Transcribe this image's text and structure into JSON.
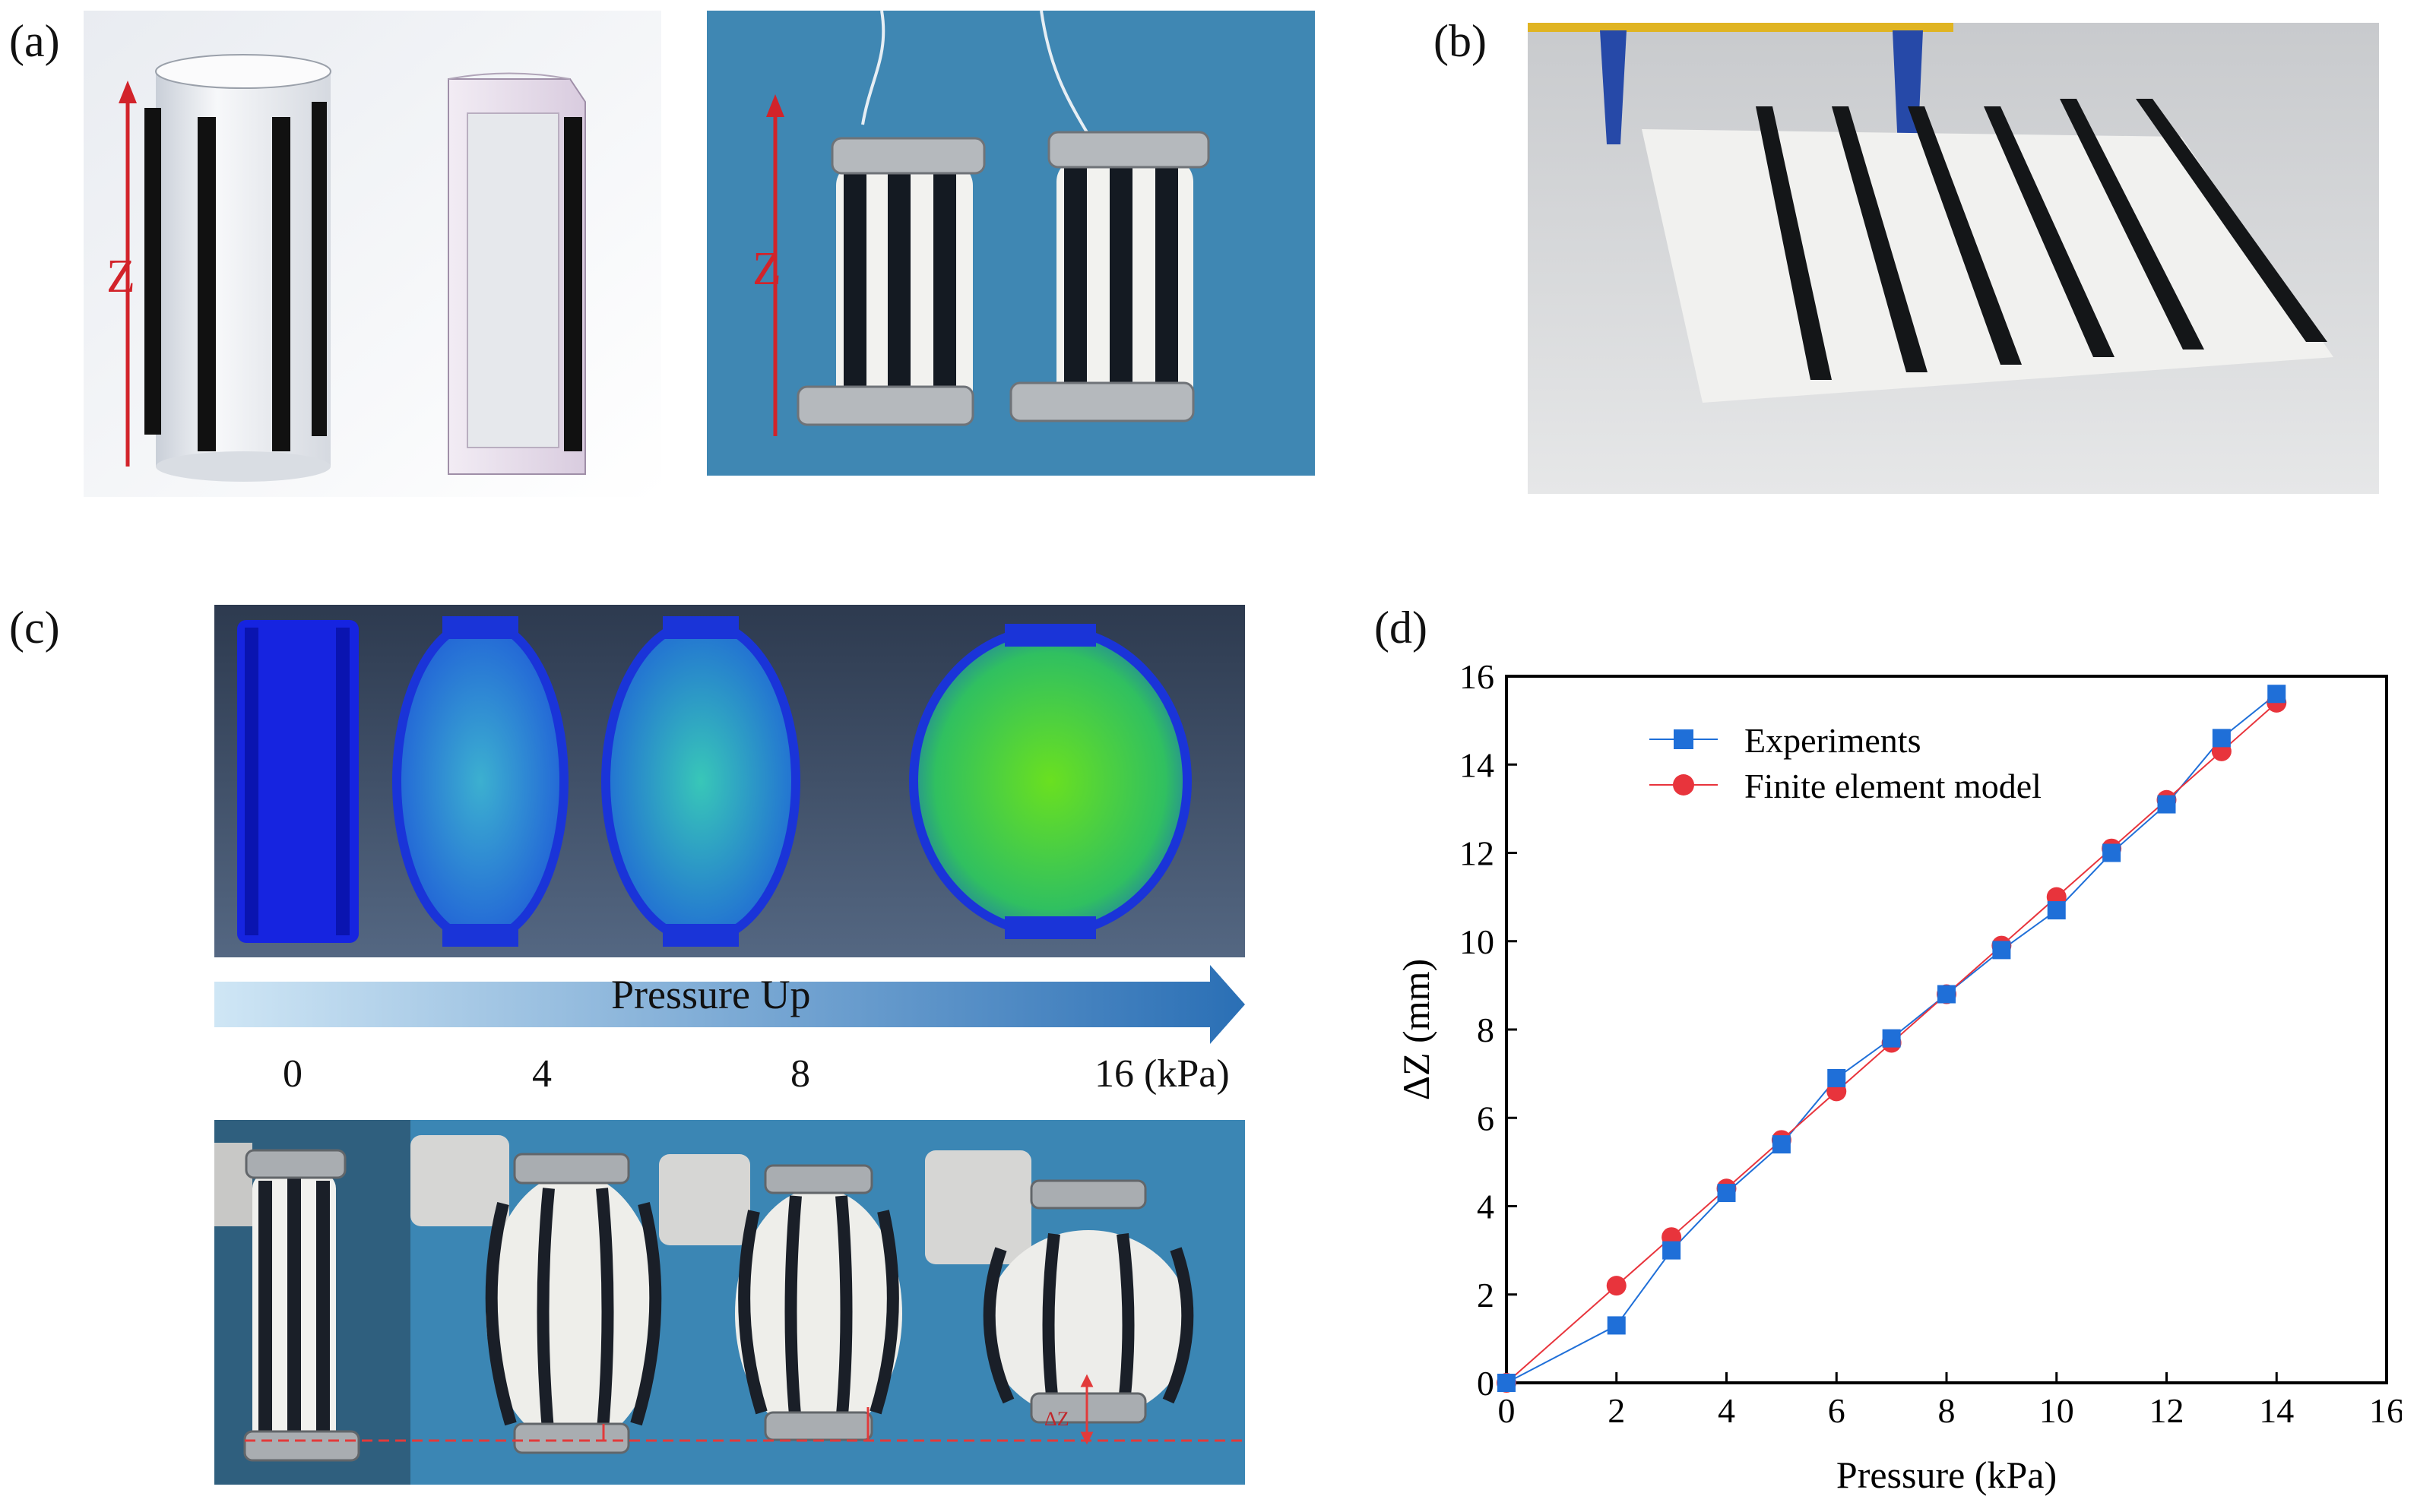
{
  "panels": {
    "a": {
      "label": "(a)",
      "cad_axis_label": "Z",
      "photo_axis_label": "Z"
    },
    "b": {
      "label": "(b)"
    },
    "c": {
      "label": "(c)",
      "arrow_text": "Pressure Up",
      "pressure_labels": [
        "0",
        "4",
        "8",
        "16 (kPa)"
      ],
      "dz_label": "ΔZ"
    },
    "d": {
      "label": "(d)"
    }
  },
  "colors": {
    "experiments": "#1f6fd8",
    "fem": "#e8343c",
    "photo_bg": "#3b86b4",
    "fem_bg": "#3a4f68"
  },
  "chart_data": {
    "type": "line",
    "xlabel": "Pressure (kPa)",
    "ylabel": "ΔZ (mm)",
    "xlim": [
      0,
      16
    ],
    "ylim": [
      0,
      16
    ],
    "xticks": [
      "0",
      "2",
      "4",
      "6",
      "8",
      "10",
      "12",
      "14",
      "16"
    ],
    "yticks": [
      "0",
      "2",
      "4",
      "6",
      "8",
      "10",
      "12",
      "14",
      "16"
    ],
    "legend_position": "top-left",
    "grid": false,
    "series": [
      {
        "name": "Experiments",
        "marker": "square",
        "color": "#1f6fd8",
        "x": [
          0,
          2,
          3,
          4,
          5,
          6,
          7,
          8,
          9,
          10,
          11,
          12,
          13,
          14
        ],
        "y": [
          0,
          1.3,
          3.0,
          4.3,
          5.4,
          6.9,
          7.8,
          8.8,
          9.8,
          10.7,
          12.0,
          13.1,
          14.6,
          15.6
        ]
      },
      {
        "name": "Finite element model",
        "marker": "circle",
        "color": "#e8343c",
        "x": [
          0,
          2,
          3,
          4,
          5,
          6,
          7,
          8,
          9,
          10,
          11,
          12,
          13,
          14
        ],
        "y": [
          0,
          2.2,
          3.3,
          4.4,
          5.5,
          6.6,
          7.7,
          8.8,
          9.9,
          11.0,
          12.1,
          13.2,
          14.3,
          15.4
        ]
      }
    ]
  }
}
